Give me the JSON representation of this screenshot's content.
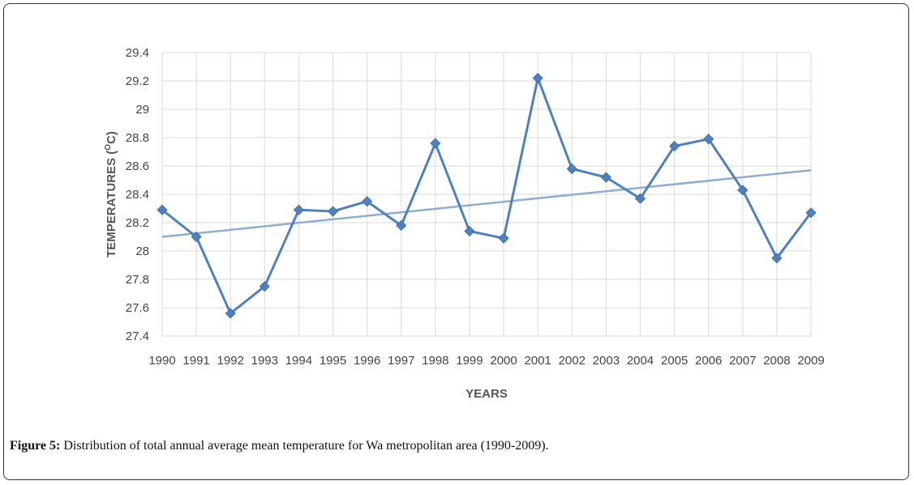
{
  "chart_data": {
    "type": "line",
    "categories": [
      "1990",
      "1991",
      "1992",
      "1993",
      "1994",
      "1995",
      "1996",
      "1997",
      "1998",
      "1999",
      "2000",
      "2001",
      "2002",
      "2003",
      "2004",
      "2005",
      "2006",
      "2007",
      "2008",
      "2009"
    ],
    "series": [
      {
        "values": [
          28.29,
          28.1,
          27.56,
          27.75,
          28.29,
          28.28,
          28.35,
          28.18,
          28.76,
          28.14,
          28.09,
          29.22,
          28.58,
          28.52,
          28.37,
          28.74,
          28.79,
          28.43,
          27.95,
          28.27
        ],
        "color": "#4f81bd",
        "marker": "diamond"
      }
    ],
    "trendline": {
      "start": 28.1,
      "end": 28.57,
      "color": "#8eaed0"
    },
    "ylim": [
      27.4,
      29.4
    ],
    "yticks": [
      "27.4",
      "27.6",
      "27.8",
      "28",
      "28.2",
      "28.4",
      "28.6",
      "28.8",
      "29",
      "29.2",
      "29.4"
    ],
    "xlabel": "YEARS",
    "ylabel_main": "TEMPERATURES",
    "ylabel_unit_open": "(",
    "ylabel_unit_deg": "O",
    "ylabel_unit_rest": "C)",
    "grid": true,
    "gridColor": "#d9d9d9"
  },
  "caption": {
    "label": "Figure 5:",
    "text": " Distribution of total annual average mean temperature for Wa metropolitan area (1990-2009)."
  }
}
